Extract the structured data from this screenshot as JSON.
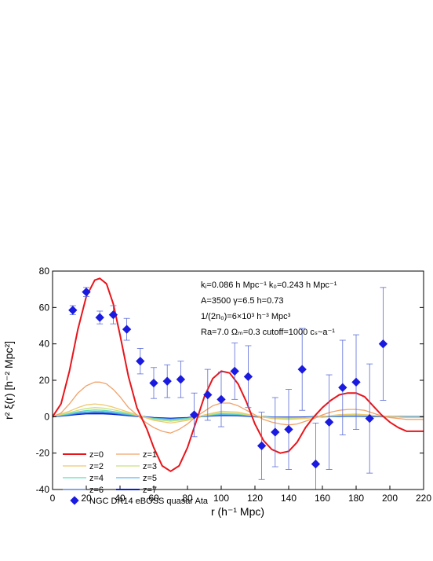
{
  "chart_data": {
    "type": "line",
    "xlabel": "r (h⁻¹ Mpc)",
    "ylabel": "r² ξ(r)  [h⁻² Mpc²]",
    "xlim": [
      0,
      220
    ],
    "ylim": [
      -40,
      80
    ],
    "xticks": [
      0,
      20,
      40,
      60,
      80,
      100,
      120,
      140,
      160,
      180,
      200,
      220
    ],
    "yticks": [
      -40,
      -20,
      0,
      20,
      40,
      60,
      80
    ],
    "grid": false,
    "legend_position": "bottom-left",
    "annotations": [
      "kⱼ=0.086 h Mpc⁻¹   k₀=0.243 h Mpc⁻¹",
      "A=3500      γ=6.5      h=0.73",
      "1/(2n₀)=6×10³ h⁻³ Mpc³",
      "Ra=7.0   Ωₘ=0.3   cutoff=1000   cₛ~a⁻¹"
    ],
    "series": [
      {
        "name": "z=0",
        "color": "#e8151b",
        "x": [
          0,
          5,
          10,
          15,
          20,
          25,
          28,
          32,
          36,
          40,
          45,
          50,
          53,
          56,
          60,
          65,
          70,
          75,
          80,
          85,
          90,
          95,
          100,
          105,
          110,
          115,
          120,
          125,
          130,
          135,
          140,
          145,
          150,
          155,
          160,
          165,
          170,
          175,
          180,
          185,
          190,
          195,
          200,
          205,
          210,
          215,
          220
        ],
        "y": [
          0,
          7,
          25,
          48,
          66,
          75,
          76,
          73,
          62,
          45,
          22,
          5,
          -1,
          -7,
          -17,
          -27,
          -30,
          -27,
          -17,
          -3,
          11,
          21,
          25,
          24,
          18,
          8,
          -4,
          -13,
          -18,
          -20,
          -19,
          -14,
          -6,
          0,
          5,
          9,
          12,
          13,
          13,
          11,
          6,
          1,
          -3,
          -6,
          -8,
          -8,
          -8
        ]
      },
      {
        "name": "z=1",
        "color": "#f0a26a",
        "x": [
          0,
          5,
          10,
          15,
          20,
          25,
          28,
          32,
          36,
          40,
          45,
          50,
          55,
          60,
          65,
          70,
          75,
          80,
          85,
          90,
          95,
          100,
          105,
          110,
          115,
          120,
          125,
          130,
          135,
          140,
          145,
          150,
          155,
          160,
          165,
          170,
          175,
          180,
          185,
          190,
          195,
          200,
          205,
          210,
          215,
          220
        ],
        "y": [
          0,
          2,
          7,
          13,
          17,
          19,
          19,
          18,
          15,
          11,
          5,
          1,
          -3,
          -6,
          -8,
          -9,
          -7,
          -4,
          0,
          3,
          6,
          7.5,
          7.5,
          6,
          3.5,
          1,
          -1.5,
          -3,
          -4,
          -4.5,
          -4,
          -2.5,
          -1,
          1,
          2.5,
          3.5,
          4,
          4,
          3.5,
          2,
          0.5,
          -0.5,
          -1,
          -1.5,
          -1.5,
          -1.5
        ]
      },
      {
        "name": "z=2",
        "color": "#f0c870",
        "x": [
          0,
          10,
          15,
          20,
          25,
          30,
          35,
          40,
          45,
          50,
          55,
          60,
          70,
          80,
          90,
          100,
          110,
          120,
          130,
          140,
          150,
          160,
          170,
          180,
          190,
          200,
          210,
          220
        ],
        "y": [
          0,
          3,
          5,
          6.5,
          7,
          6.5,
          5.5,
          4,
          2.5,
          1,
          -0.5,
          -2,
          -3.5,
          -2,
          1,
          3,
          2.5,
          0.5,
          -1,
          -1.5,
          -1,
          0,
          1.2,
          1.5,
          0.8,
          0,
          -0.5,
          -0.5
        ]
      },
      {
        "name": "z=3",
        "color": "#c8e07a",
        "x": [
          0,
          10,
          15,
          20,
          25,
          30,
          35,
          40,
          45,
          50,
          55,
          60,
          70,
          80,
          90,
          100,
          110,
          120,
          130,
          140,
          150,
          160,
          170,
          180,
          190,
          200,
          210,
          220
        ],
        "y": [
          0,
          2.2,
          3.5,
          4.5,
          5,
          4.7,
          4,
          3,
          2,
          0.8,
          -0.4,
          -1.5,
          -2.5,
          -1.5,
          0.7,
          2.2,
          1.8,
          0.4,
          -0.7,
          -1.1,
          -0.8,
          0,
          0.9,
          1.1,
          0.6,
          0,
          -0.4,
          -0.4
        ]
      },
      {
        "name": "z=4",
        "color": "#62ddb8",
        "x": [
          0,
          10,
          15,
          20,
          25,
          30,
          35,
          40,
          45,
          50,
          55,
          60,
          70,
          80,
          90,
          100,
          110,
          120,
          130,
          140,
          150,
          160,
          170,
          180,
          190,
          200,
          210,
          220
        ],
        "y": [
          0,
          1.7,
          2.7,
          3.4,
          3.7,
          3.5,
          3,
          2.3,
          1.5,
          0.6,
          -0.3,
          -1.1,
          -1.9,
          -1.1,
          0.5,
          1.7,
          1.4,
          0.3,
          -0.5,
          -0.8,
          -0.6,
          0,
          0.7,
          0.8,
          0.5,
          0,
          -0.3,
          -0.3
        ]
      },
      {
        "name": "z=5",
        "color": "#5bb8f0",
        "x": [
          0,
          10,
          15,
          20,
          25,
          30,
          35,
          40,
          45,
          50,
          55,
          60,
          70,
          80,
          90,
          100,
          110,
          120,
          130,
          140,
          150,
          160,
          170,
          180,
          190,
          200,
          210,
          220
        ],
        "y": [
          0,
          1.4,
          2.2,
          2.7,
          2.9,
          2.8,
          2.4,
          1.8,
          1.2,
          0.5,
          -0.3,
          -0.9,
          -1.5,
          -0.9,
          0.4,
          1.3,
          1.1,
          0.2,
          -0.4,
          -0.6,
          -0.5,
          0,
          0.5,
          0.6,
          0.4,
          0,
          -0.2,
          -0.2
        ]
      },
      {
        "name": "z=6",
        "color": "#3a6fe0",
        "x": [
          0,
          10,
          15,
          20,
          25,
          30,
          35,
          40,
          45,
          50,
          55,
          60,
          70,
          80,
          90,
          100,
          110,
          120,
          130,
          140,
          150,
          160,
          170,
          180,
          190,
          200,
          210,
          220
        ],
        "y": [
          0,
          1.1,
          1.7,
          2.1,
          2.3,
          2.2,
          1.9,
          1.4,
          0.9,
          0.4,
          -0.2,
          -0.7,
          -1.2,
          -0.7,
          0.3,
          1,
          0.9,
          0.2,
          -0.3,
          -0.5,
          -0.4,
          0,
          0.4,
          0.5,
          0.3,
          0,
          -0.2,
          -0.2
        ]
      },
      {
        "name": "z=7",
        "color": "#0a1fc8",
        "x": [
          0,
          10,
          15,
          20,
          25,
          30,
          35,
          40,
          45,
          50,
          55,
          60,
          70,
          80,
          90,
          100,
          110,
          120,
          130,
          140,
          150,
          160,
          170,
          180,
          190,
          200,
          210,
          220
        ],
        "y": [
          0,
          0.9,
          1.4,
          1.7,
          1.8,
          1.7,
          1.5,
          1.1,
          0.7,
          0.3,
          -0.2,
          -0.6,
          -1,
          -0.6,
          0.3,
          0.8,
          0.7,
          0.1,
          -0.3,
          -0.4,
          -0.3,
          0,
          0.3,
          0.4,
          0.2,
          0,
          -0.1,
          -0.1
        ]
      }
    ],
    "points": {
      "name": "NGC DR14 eBOSS quasar Ata",
      "color": "#1a1ae0",
      "x": [
        12,
        20,
        28,
        36,
        44,
        52,
        60,
        68,
        76,
        84,
        92,
        100,
        108,
        116,
        124,
        132,
        140,
        148,
        156,
        164,
        172,
        180,
        188,
        196
      ],
      "y": [
        58.5,
        68.5,
        54.5,
        56,
        48,
        30.5,
        18.5,
        19.5,
        20.5,
        1,
        12,
        9.5,
        25,
        22,
        -16,
        -8.5,
        -7,
        26,
        -26,
        -3,
        16,
        19,
        -1,
        40
      ],
      "err": [
        2.5,
        2.5,
        3.5,
        5,
        6,
        7,
        8.5,
        9,
        10,
        12,
        14,
        15,
        15.5,
        17,
        18.5,
        19,
        22,
        22.5,
        22.5,
        26,
        26,
        26,
        30,
        31
      ]
    }
  }
}
